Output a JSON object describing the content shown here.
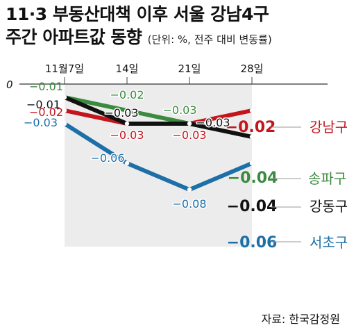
{
  "header": {
    "title_line1": "11·3 부동산대책 이후 서울 강남4구",
    "title_line2": "주간 아파트값 동향",
    "unit_note": "(단위: %, 전주 대비 변동률)"
  },
  "source": "자료: 한국감정원",
  "chart_data": {
    "type": "line",
    "x": [
      "11월7일",
      "14일",
      "21일",
      "28일"
    ],
    "ylim": [
      -0.085,
      0
    ],
    "y_tick_labels": [
      "0"
    ],
    "shaded_region": [
      "11월7일",
      "28일"
    ],
    "series": [
      {
        "name": "강남구",
        "color": "#c4151c",
        "values": [
          -0.02,
          -0.03,
          -0.03,
          -0.02
        ],
        "labels": [
          "-0.02",
          "-0.03",
          "-0.03",
          "-0.02"
        ]
      },
      {
        "name": "송파구",
        "color": "#3b8a3e",
        "values": [
          -0.01,
          -0.02,
          -0.03,
          -0.04
        ],
        "labels": [
          "-0.01",
          "-0.02",
          "-0.03",
          "-0.04"
        ]
      },
      {
        "name": "강동구",
        "color": "#111111",
        "values": [
          -0.01,
          -0.03,
          -0.03,
          -0.04
        ],
        "labels": [
          "-0.01",
          "-0.03",
          "-0.03",
          "-0.04"
        ]
      },
      {
        "name": "서초구",
        "color": "#1d6fa8",
        "values": [
          -0.03,
          -0.06,
          -0.08,
          -0.06
        ],
        "labels": [
          "-0.03",
          "-0.06",
          "-0.08",
          "-0.06"
        ]
      }
    ]
  }
}
